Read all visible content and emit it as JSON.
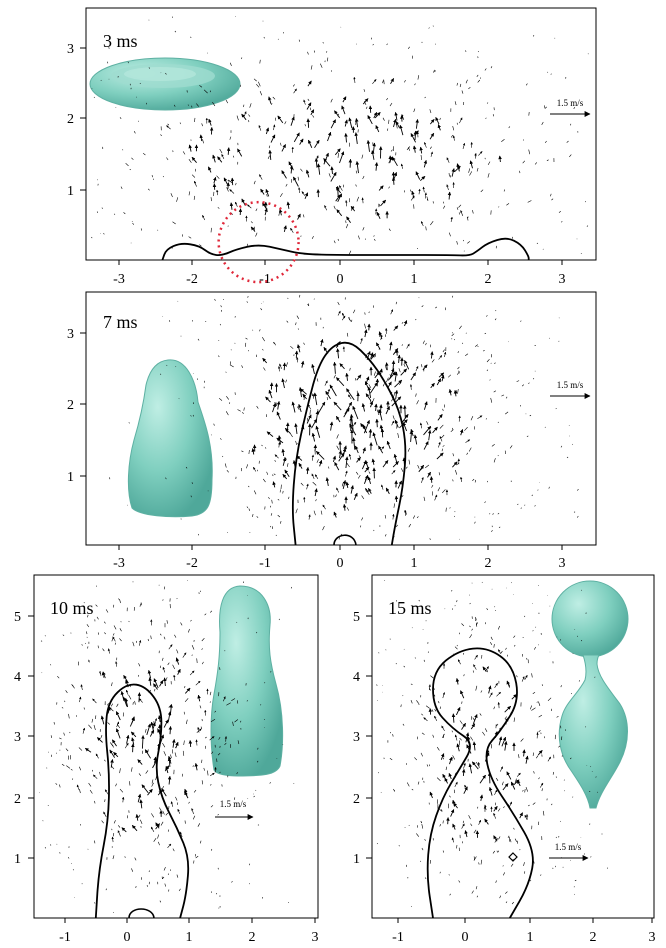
{
  "figure": {
    "reference_arrow_label": "1.5 m/s",
    "droplet_color": "#7fcfbf"
  },
  "chart_data": [
    {
      "type": "scatter",
      "title": "3 ms",
      "xlim": [
        -3.5,
        3.5
      ],
      "ylim": [
        0,
        3.4
      ],
      "x_ticks": [
        -3,
        -2,
        -1,
        0,
        1,
        2,
        3
      ],
      "y_ticks": [
        1,
        2,
        3
      ],
      "grid": false,
      "reference_arrow": "1.5 m/s",
      "highlight_circle": {
        "center": [
          -1.1,
          0.25
        ],
        "radius": 0.6
      },
      "interface_points": [
        [
          -2.4,
          0
        ],
        [
          -2.35,
          0.15
        ],
        [
          -2.15,
          0.24
        ],
        [
          -1.9,
          0.2
        ],
        [
          -1.75,
          0.08
        ],
        [
          -1.6,
          0.06
        ],
        [
          -1.4,
          0.15
        ],
        [
          -1.1,
          0.22
        ],
        [
          -0.8,
          0.15
        ],
        [
          -0.5,
          0.08
        ],
        [
          0,
          0.07
        ],
        [
          0.8,
          0.07
        ],
        [
          1.5,
          0.07
        ],
        [
          1.75,
          0.06
        ],
        [
          1.85,
          0.12
        ],
        [
          2.0,
          0.24
        ],
        [
          2.25,
          0.32
        ],
        [
          2.45,
          0.22
        ],
        [
          2.55,
          0.05
        ],
        [
          2.55,
          0
        ]
      ]
    },
    {
      "type": "scatter",
      "title": "7 ms",
      "xlim": [
        -3.5,
        3.5
      ],
      "ylim": [
        0,
        3.4
      ],
      "x_ticks": [
        -3,
        -2,
        -1,
        0,
        1,
        2,
        3
      ],
      "y_ticks": [
        1,
        2,
        3
      ],
      "grid": false,
      "reference_arrow": "1.5 m/s",
      "interface_points": [
        [
          -0.6,
          0
        ],
        [
          -0.65,
          0.5
        ],
        [
          -0.6,
          1.2
        ],
        [
          -0.45,
          1.9
        ],
        [
          -0.3,
          2.5
        ],
        [
          -0.1,
          2.8
        ],
        [
          0.15,
          2.85
        ],
        [
          0.4,
          2.6
        ],
        [
          0.6,
          2.3
        ],
        [
          0.8,
          1.9
        ],
        [
          0.9,
          1.4
        ],
        [
          0.85,
          0.8
        ],
        [
          0.75,
          0.3
        ],
        [
          0.7,
          0
        ]
      ]
    },
    {
      "type": "scatter",
      "title": "10 ms",
      "xlim": [
        -1.25,
        3.05
      ],
      "ylim": [
        0,
        5.8
      ],
      "x_ticks": [
        -1,
        0,
        1,
        2,
        3
      ],
      "y_ticks": [
        1,
        2,
        3,
        4,
        5
      ],
      "grid": false,
      "reference_arrow": "1.5 m/s",
      "interface_points": [
        [
          -0.5,
          0
        ],
        [
          -0.45,
          0.8
        ],
        [
          -0.3,
          1.6
        ],
        [
          -0.28,
          2.4
        ],
        [
          -0.35,
          3.1
        ],
        [
          -0.3,
          3.6
        ],
        [
          0,
          3.9
        ],
        [
          0.3,
          3.85
        ],
        [
          0.55,
          3.5
        ],
        [
          0.55,
          3.0
        ],
        [
          0.45,
          2.5
        ],
        [
          0.55,
          2.0
        ],
        [
          0.8,
          1.5
        ],
        [
          1.0,
          1.0
        ],
        [
          0.95,
          0.4
        ],
        [
          0.85,
          0
        ]
      ]
    },
    {
      "type": "scatter",
      "title": "15 ms",
      "xlim": [
        -1.2,
        3.05
      ],
      "ylim": [
        0,
        5.8
      ],
      "x_ticks": [
        -1,
        0,
        1,
        2,
        3
      ],
      "y_ticks": [
        1,
        2,
        3,
        4,
        5
      ],
      "grid": false,
      "reference_arrow": "1.5 m/s",
      "interface_points": [
        [
          -0.5,
          0
        ],
        [
          -0.6,
          0.7
        ],
        [
          -0.55,
          1.4
        ],
        [
          -0.35,
          2.0
        ],
        [
          -0.1,
          2.45
        ],
        [
          0.15,
          2.9
        ],
        [
          -0.2,
          3.15
        ],
        [
          -0.5,
          3.5
        ],
        [
          -0.5,
          4.1
        ],
        [
          -0.1,
          4.45
        ],
        [
          0.35,
          4.5
        ],
        [
          0.75,
          4.2
        ],
        [
          0.85,
          3.6
        ],
        [
          0.55,
          3.1
        ],
        [
          0.3,
          2.8
        ],
        [
          0.4,
          2.3
        ],
        [
          0.75,
          1.75
        ],
        [
          1.1,
          1.1
        ],
        [
          1.0,
          0.55
        ],
        [
          0.7,
          0
        ]
      ]
    }
  ]
}
